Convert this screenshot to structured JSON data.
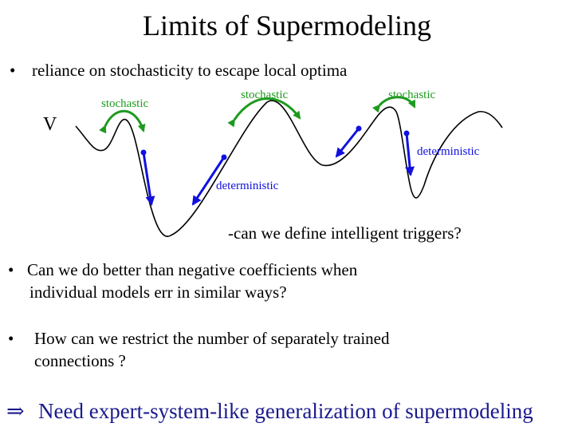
{
  "title": "Limits of Supermodeling",
  "colors": {
    "stochastic": "#1e9a1e",
    "deterministic": "#1010e0",
    "conclusion": "#1a1a8c"
  },
  "bullet1": {
    "marker": "•",
    "text": "reliance on stochasticity to escape local optima"
  },
  "diagram": {
    "v_label": "V",
    "stochastic_labels": [
      "stochastic",
      "stochastic",
      "stochastic"
    ],
    "deterministic_labels": [
      "deterministic",
      "deterministic"
    ],
    "question": "-can we define intelligent triggers?"
  },
  "bullet2": {
    "marker": "•",
    "line1": "Can we do better than negative coefficients when",
    "line2": "individual models err in similar ways?"
  },
  "bullet3": {
    "marker": "•",
    "line1": "How can we restrict the number of separately trained",
    "line2": "connections ?"
  },
  "conclusion": {
    "symbol": "⇒",
    "text": "Need  expert-system-like generalization of supermodeling"
  }
}
